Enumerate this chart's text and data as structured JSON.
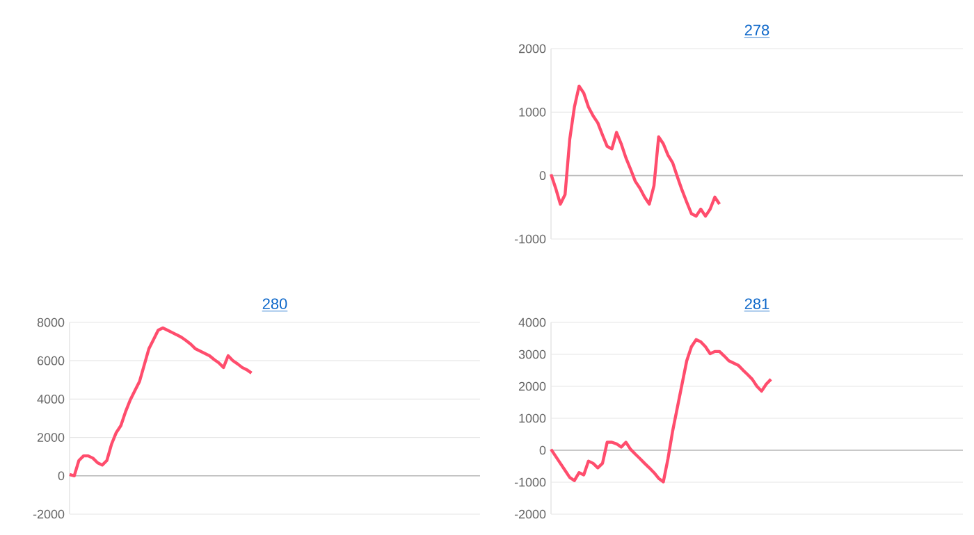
{
  "chart_data": [
    {
      "type": "line",
      "title": "278",
      "categories": [
        null,
        null,
        null,
        null,
        null,
        null,
        null,
        null,
        null,
        null,
        null,
        null,
        null,
        null,
        null,
        null,
        null,
        null,
        null,
        null,
        null,
        null,
        null,
        null,
        null,
        null,
        null,
        null,
        null,
        null,
        null,
        null,
        null,
        null,
        null,
        null,
        null,
        null,
        null,
        null,
        null,
        null,
        null,
        null,
        null,
        null,
        null,
        null,
        null,
        null,
        null,
        null,
        null,
        null,
        null,
        null,
        null,
        null,
        null,
        null,
        null,
        null,
        null,
        null,
        null,
        null,
        null,
        null,
        null,
        null,
        null,
        null,
        null,
        null,
        null,
        null,
        null,
        null,
        null,
        null,
        null,
        null,
        null,
        null,
        null,
        null,
        null,
        null,
        null
      ],
      "values": [
        20,
        -200,
        -450,
        -300,
        570,
        1080,
        1410,
        1300,
        1080,
        940,
        830,
        640,
        460,
        420,
        680,
        500,
        280,
        100,
        -90,
        -200,
        -340,
        -450,
        -160,
        610,
        500,
        320,
        200,
        -20,
        -230,
        -420,
        -600,
        -640,
        -530,
        -640,
        -530,
        -340,
        -450,
        null,
        null,
        null,
        null,
        null,
        null,
        null,
        null,
        null,
        null,
        null,
        null,
        null,
        null,
        null,
        null,
        null,
        null,
        null,
        null,
        null,
        null,
        null,
        null,
        null,
        null,
        null,
        null,
        null,
        null,
        null,
        null,
        null,
        null,
        null,
        null,
        null,
        null,
        null,
        null,
        null,
        null,
        null,
        null,
        null,
        null,
        null,
        null,
        null,
        null,
        null,
        null
      ],
      "color": "#ff4d6d",
      "ylim": [
        -1000,
        2000
      ],
      "yticks": [
        -1000,
        0,
        1000,
        2000
      ],
      "grid": "y",
      "tick_labels": "y"
    },
    {
      "type": "line",
      "title": "280",
      "categories": [
        null,
        null,
        null,
        null,
        null,
        null,
        null,
        null,
        null,
        null,
        null,
        null,
        null,
        null,
        null,
        null,
        null,
        null,
        null,
        null,
        null,
        null,
        null,
        null,
        null,
        null,
        null,
        null,
        null,
        null,
        null,
        null,
        null,
        null,
        null,
        null,
        null,
        null,
        null,
        null,
        null,
        null,
        null,
        null,
        null,
        null,
        null,
        null,
        null,
        null,
        null,
        null,
        null,
        null,
        null,
        null,
        null,
        null,
        null,
        null,
        null,
        null,
        null,
        null,
        null,
        null,
        null,
        null,
        null,
        null,
        null,
        null,
        null,
        null,
        null,
        null,
        null,
        null,
        null,
        null,
        null,
        null,
        null,
        null,
        null,
        null,
        null,
        null,
        null
      ],
      "values": [
        70,
        0,
        800,
        1040,
        1040,
        920,
        680,
        560,
        800,
        1650,
        2250,
        2620,
        3340,
        3950,
        4440,
        4920,
        5770,
        6620,
        7100,
        7590,
        7710,
        7590,
        7470,
        7350,
        7220,
        7050,
        6860,
        6620,
        6500,
        6380,
        6260,
        6060,
        5890,
        5650,
        6260,
        6010,
        5840,
        5650,
        5530,
        5360,
        null,
        null,
        null,
        null,
        null,
        null,
        null,
        null,
        null,
        null,
        null,
        null,
        null,
        null,
        null,
        null,
        null,
        null,
        null,
        null,
        null,
        null,
        null,
        null,
        null,
        null,
        null,
        null,
        null,
        null,
        null,
        null,
        null,
        null,
        null,
        null,
        null,
        null,
        null,
        null,
        null,
        null,
        null,
        null,
        null,
        null,
        null,
        null,
        null
      ],
      "color": "#ff4d6d",
      "ylim": [
        -2000,
        8000
      ],
      "yticks": [
        -2000,
        0,
        2000,
        4000,
        6000,
        8000
      ],
      "grid": "y",
      "tick_labels": "y"
    },
    {
      "type": "line",
      "title": "281",
      "categories": [
        null,
        null,
        null,
        null,
        null,
        null,
        null,
        null,
        null,
        null,
        null,
        null,
        null,
        null,
        null,
        null,
        null,
        null,
        null,
        null,
        null,
        null,
        null,
        null,
        null,
        null,
        null,
        null,
        null,
        null,
        null,
        null,
        null,
        null,
        null,
        null,
        null,
        null,
        null,
        null,
        null,
        null,
        null,
        null,
        null,
        null,
        null,
        null,
        null,
        null,
        null,
        null,
        null,
        null,
        null,
        null,
        null,
        null,
        null,
        null,
        null,
        null,
        null,
        null,
        null,
        null,
        null,
        null,
        null,
        null,
        null,
        null,
        null,
        null,
        null,
        null,
        null,
        null,
        null,
        null,
        null,
        null,
        null,
        null,
        null,
        null,
        null,
        null,
        null
      ],
      "values": [
        30,
        -190,
        -410,
        -630,
        -850,
        -950,
        -700,
        -770,
        -340,
        -410,
        -550,
        -410,
        250,
        250,
        200,
        100,
        250,
        30,
        -120,
        -260,
        -410,
        -550,
        -700,
        -880,
        -990,
        -260,
        610,
        1340,
        2070,
        2800,
        3240,
        3460,
        3390,
        3240,
        3020,
        3090,
        3090,
        2950,
        2800,
        2730,
        2660,
        2510,
        2370,
        2220,
        2000,
        1850,
        2070,
        2220,
        null,
        null,
        null,
        null,
        null,
        null,
        null,
        null,
        null,
        null,
        null,
        null,
        null,
        null,
        null,
        null,
        null,
        null,
        null,
        null,
        null,
        null,
        null,
        null,
        null,
        null,
        null,
        null,
        null,
        null,
        null,
        null,
        null,
        null,
        null,
        null,
        null,
        null,
        null,
        null,
        null
      ],
      "color": "#ff4d6d",
      "ylim": [
        -2000,
        4000
      ],
      "yticks": [
        -2000,
        -1000,
        0,
        1000,
        2000,
        3000,
        4000
      ],
      "grid": "y",
      "tick_labels": "y"
    }
  ]
}
